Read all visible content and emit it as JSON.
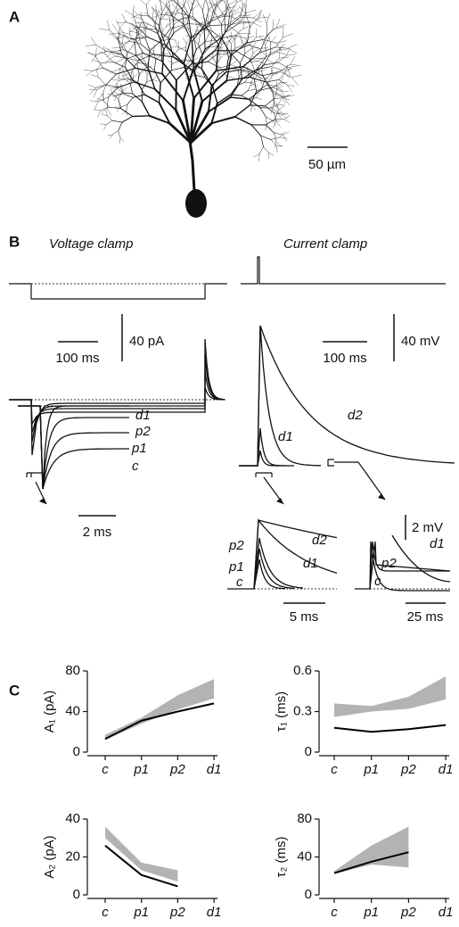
{
  "panels": {
    "a": "A",
    "b": "B",
    "c": "C"
  },
  "panel_a": {
    "scale_bar": "50 µm"
  },
  "panel_b": {
    "voltage_clamp": {
      "title": "Voltage clamp",
      "time_bar": "100 ms",
      "amp_bar": "40 pA",
      "inset": {
        "labels": [
          "d1",
          "p2",
          "p1",
          "c"
        ],
        "time_bar": "2 ms"
      }
    },
    "current_clamp": {
      "title": "Current clamp",
      "time_bar": "100 ms",
      "amp_bar": "40 mV",
      "trace_labels": [
        "d1",
        "d2"
      ],
      "inset_fast": {
        "labels": [
          "d2",
          "d1",
          "p2",
          "p1",
          "c"
        ],
        "time_bar": "5 ms"
      },
      "inset_slow": {
        "labels": [
          "p2",
          "d1",
          "c"
        ],
        "time_bar": "25 ms",
        "amp_bar": "2 mV"
      }
    }
  },
  "chart_data": [
    {
      "type": "line",
      "y_label": "A₁ (pA)",
      "categories": [
        "c",
        "p1",
        "p2",
        "d1"
      ],
      "values": [
        13,
        31,
        40,
        48
      ],
      "band": {
        "lower": [
          12,
          28,
          42,
          53
        ],
        "upper": [
          17,
          34,
          56,
          72
        ]
      },
      "color": "#000000",
      "band_color": "#b3b3b3",
      "ylim": [
        0,
        80
      ],
      "yticks": [
        0,
        40,
        80
      ]
    },
    {
      "type": "line",
      "y_label": "τ₁ (ms)",
      "categories": [
        "c",
        "p1",
        "p2",
        "d1"
      ],
      "values": [
        0.18,
        0.15,
        0.17,
        0.2
      ],
      "band": {
        "lower": [
          0.26,
          0.3,
          0.32,
          0.39
        ],
        "upper": [
          0.36,
          0.34,
          0.41,
          0.56
        ]
      },
      "color": "#000000",
      "band_color": "#b3b3b3",
      "ylim": [
        0,
        0.6
      ],
      "yticks": [
        0,
        0.3,
        0.6
      ]
    },
    {
      "type": "line",
      "y_label": "A₂ (pA)",
      "categories": [
        "c",
        "p1",
        "p2",
        "d1"
      ],
      "values": [
        26,
        10.5,
        4.5,
        null
      ],
      "band": {
        "lower": [
          30,
          13,
          7,
          null
        ],
        "upper": [
          36,
          17,
          13,
          null
        ]
      },
      "color": "#000000",
      "band_color": "#b3b3b3",
      "ylim": [
        0,
        40
      ],
      "yticks": [
        0,
        20,
        40
      ]
    },
    {
      "type": "line",
      "y_label": "τ₂ (ms)",
      "categories": [
        "c",
        "p1",
        "p2",
        "d1"
      ],
      "values": [
        23,
        35,
        45,
        null
      ],
      "band": {
        "lower": [
          22,
          32,
          29,
          null
        ],
        "upper": [
          25,
          52,
          72,
          null
        ]
      },
      "color": "#000000",
      "band_color": "#b3b3b3",
      "ylim": [
        0,
        80
      ],
      "yticks": [
        0,
        40,
        80
      ]
    }
  ]
}
